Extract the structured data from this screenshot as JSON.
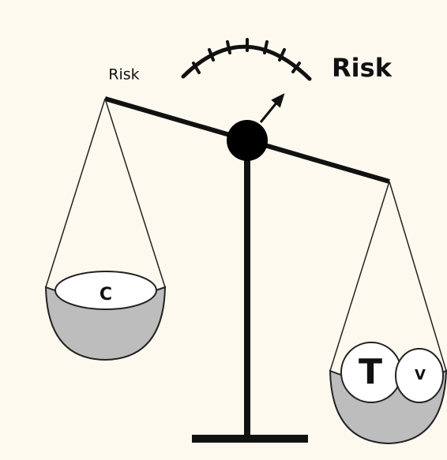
{
  "labels": {
    "small_risk": "Risk",
    "large_risk": "Risk",
    "left_pan": "C",
    "right_pan_large": "T",
    "right_pan_small": "V"
  }
}
